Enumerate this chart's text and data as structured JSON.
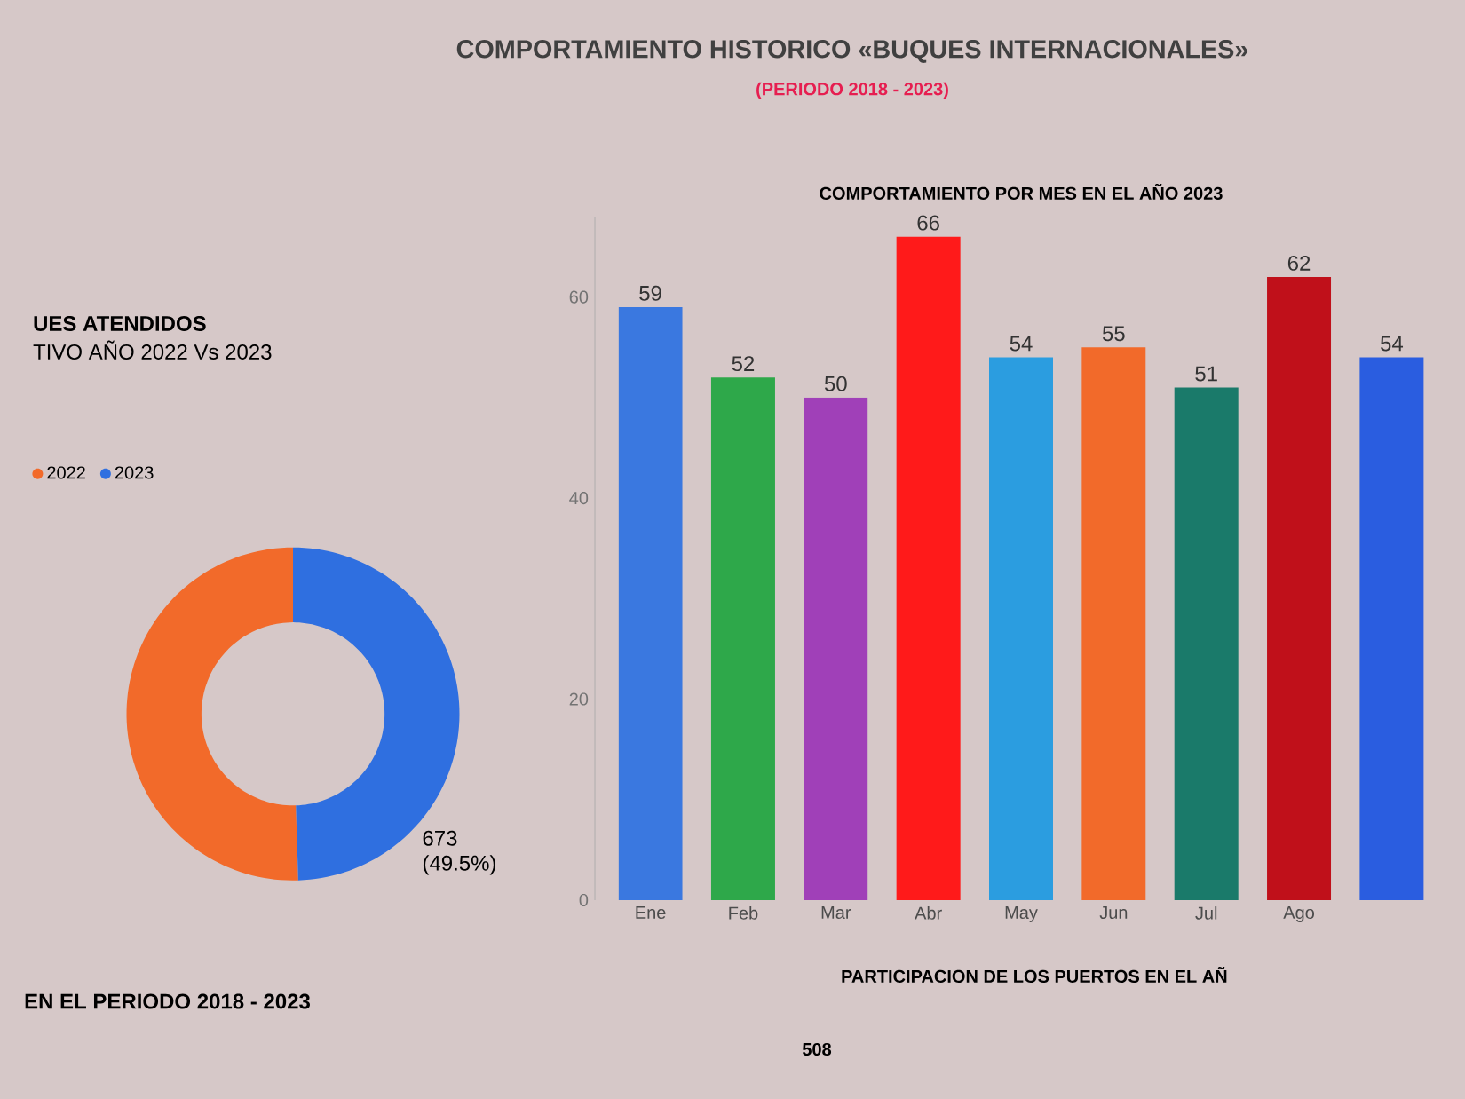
{
  "chart_data": [
    {
      "type": "other",
      "title": "COMPORTAMIENTO HISTORICO «BUQUES INTERNACIONALES»",
      "subtitle": "(PERIODO 2018 - 2023)",
      "annotations": [
        "EN EL PERIODO 2018 - 2023",
        "PARTICIPACION DE LOS PUERTOS EN EL AÑ",
        "508"
      ]
    },
    {
      "type": "donut",
      "title": "UES ATENDIDOS",
      "subtitle": "TIVO AÑO 2022 Vs 2023",
      "categories": [
        "2022",
        "2023"
      ],
      "values": [
        50.5,
        49.5
      ],
      "colors": [
        "#f26a2a",
        "#2f6fe0"
      ],
      "value_labels": [
        null,
        "673 (49.5%)"
      ],
      "legend": "top left"
    },
    {
      "type": "bar",
      "title": "COMPORTAMIENTO POR MES EN EL AÑO 2023",
      "categories": [
        "Ene",
        "Feb",
        "Mar",
        "Abr",
        "May",
        "Jun",
        "Jul",
        "Ago",
        null
      ],
      "values": [
        59,
        52,
        50,
        66,
        54,
        55,
        51,
        62,
        54
      ],
      "colors": [
        "#3a78e0",
        "#2ea84a",
        "#a040b8",
        "#ff1a1a",
        "#2b9de0",
        "#f26a2a",
        "#1a7a6a",
        "#c0101a",
        "#2a5de0"
      ],
      "ylim": [
        0,
        68
      ],
      "yticks": [
        0,
        20,
        40,
        60
      ],
      "data_labels": true
    }
  ]
}
